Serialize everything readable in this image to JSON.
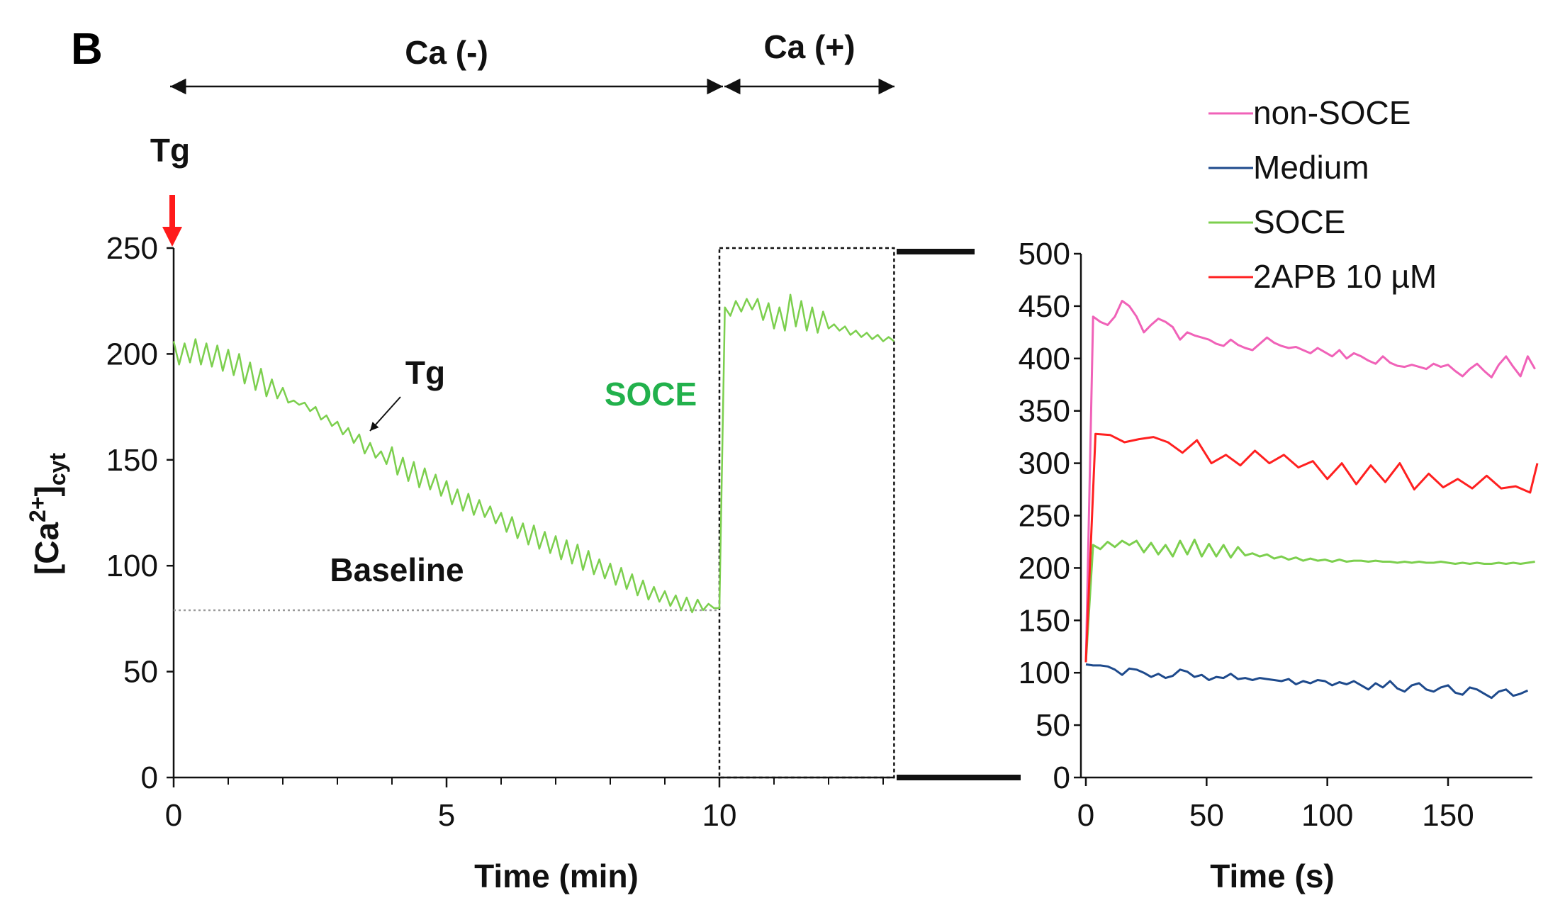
{
  "panel_label": "B",
  "colors": {
    "axis": "#111111",
    "tg_arrow": "#ff1a1a",
    "soce_annotation": "#22b14c",
    "baseline_dotted": "#9a9a9a"
  },
  "annotations": {
    "ca_minus": "Ca (-)",
    "ca_plus": "Ca (+)",
    "tg_top": "Tg",
    "tg_inline": "Tg",
    "soce": "SOCE",
    "baseline": "Baseline"
  },
  "chart_data": [
    {
      "type": "line",
      "xlabel": "Time (min)",
      "ylabel": "[Ca2+]cyt",
      "ylabel_parts": {
        "main": "[Ca",
        "sup": "2+",
        "close": "]",
        "sub": "cyt"
      },
      "xlim": [
        0,
        13.2
      ],
      "ylim": [
        0,
        250
      ],
      "x_ticks": [
        0,
        5,
        10
      ],
      "x_minor_ticks": [
        1,
        2,
        3,
        4,
        6,
        7,
        8,
        9,
        11,
        12,
        13
      ],
      "y_ticks": [
        0,
        50,
        100,
        150,
        200,
        250
      ],
      "baseline_value": 79,
      "inset_box": {
        "x": [
          10,
          13.2
        ],
        "y": [
          0,
          250
        ]
      },
      "series": [
        {
          "color": "#7ccf4e",
          "x": [
            0,
            0.1,
            0.2,
            0.3,
            0.4,
            0.5,
            0.6,
            0.7,
            0.8,
            0.9,
            1.0,
            1.1,
            1.2,
            1.3,
            1.4,
            1.5,
            1.6,
            1.7,
            1.8,
            1.9,
            2.0,
            2.1,
            2.2,
            2.3,
            2.4,
            2.5,
            2.6,
            2.7,
            2.8,
            2.9,
            3.0,
            3.1,
            3.2,
            3.3,
            3.4,
            3.5,
            3.6,
            3.7,
            3.8,
            3.9,
            4.0,
            4.1,
            4.2,
            4.3,
            4.4,
            4.5,
            4.6,
            4.7,
            4.8,
            4.9,
            5.0,
            5.1,
            5.2,
            5.3,
            5.4,
            5.5,
            5.6,
            5.7,
            5.8,
            5.9,
            6.0,
            6.1,
            6.2,
            6.3,
            6.4,
            6.5,
            6.6,
            6.7,
            6.8,
            6.9,
            7.0,
            7.1,
            7.2,
            7.3,
            7.4,
            7.5,
            7.6,
            7.7,
            7.8,
            7.9,
            8.0,
            8.1,
            8.2,
            8.3,
            8.4,
            8.5,
            8.6,
            8.7,
            8.8,
            8.9,
            9.0,
            9.1,
            9.2,
            9.3,
            9.4,
            9.5,
            9.6,
            9.7,
            9.8,
            9.9,
            10.0,
            10.1,
            10.2,
            10.3,
            10.4,
            10.5,
            10.6,
            10.7,
            10.8,
            10.9,
            11.0,
            11.1,
            11.2,
            11.3,
            11.4,
            11.5,
            11.6,
            11.7,
            11.8,
            11.9,
            12.0,
            12.1,
            12.2,
            12.3,
            12.4,
            12.5,
            12.6,
            12.7,
            12.8,
            12.9,
            13.0,
            13.1,
            13.2
          ],
          "y": [
            206,
            195,
            205,
            196,
            207,
            195,
            205,
            194,
            204,
            192,
            202,
            190,
            200,
            186,
            196,
            183,
            193,
            180,
            188,
            179,
            184,
            177,
            178,
            176,
            177,
            173,
            175,
            169,
            171,
            166,
            168,
            162,
            165,
            158,
            162,
            153,
            158,
            151,
            154,
            148,
            156,
            143,
            151,
            140,
            149,
            137,
            146,
            136,
            143,
            133,
            140,
            129,
            136,
            126,
            134,
            124,
            131,
            123,
            128,
            120,
            125,
            116,
            123,
            113,
            120,
            110,
            119,
            108,
            116,
            106,
            114,
            103,
            112,
            101,
            110,
            98,
            107,
            96,
            103,
            94,
            101,
            91,
            99,
            89,
            96,
            86,
            93,
            84,
            90,
            83,
            88,
            81,
            86,
            79,
            85,
            78,
            84,
            79,
            82,
            80,
            80,
            222,
            218,
            225,
            220,
            226,
            221,
            226,
            216,
            224,
            212,
            222,
            211,
            228,
            213,
            225,
            211,
            222,
            210,
            220,
            212,
            214,
            211,
            213,
            209,
            211,
            208,
            210,
            207,
            209,
            206,
            208,
            206
          ]
        }
      ]
    },
    {
      "type": "line",
      "xlabel": "Time (s)",
      "ylabel": "",
      "xlim": [
        0,
        187
      ],
      "ylim": [
        0,
        500
      ],
      "x_ticks": [
        0,
        50,
        100,
        150
      ],
      "y_ticks": [
        0,
        50,
        100,
        150,
        200,
        250,
        300,
        350,
        400,
        450,
        500
      ],
      "legend": {
        "position": "top-right"
      },
      "series": [
        {
          "name": "non-SOCE",
          "color": "#f062b8",
          "x": [
            0,
            3,
            6,
            9,
            12,
            15,
            18,
            21,
            24,
            27,
            30,
            33,
            36,
            39,
            42,
            45,
            48,
            51,
            54,
            57,
            60,
            63,
            66,
            69,
            72,
            75,
            78,
            81,
            84,
            87,
            90,
            93,
            96,
            99,
            102,
            105,
            108,
            111,
            114,
            117,
            120,
            123,
            126,
            129,
            132,
            135,
            138,
            141,
            144,
            147,
            150,
            153,
            156,
            159,
            162,
            165,
            168,
            171,
            174,
            177,
            180,
            183,
            186
          ],
          "y": [
            110,
            440,
            435,
            432,
            440,
            455,
            450,
            440,
            425,
            432,
            438,
            435,
            430,
            418,
            425,
            422,
            420,
            418,
            414,
            412,
            418,
            413,
            410,
            408,
            414,
            420,
            415,
            412,
            410,
            411,
            408,
            405,
            410,
            406,
            402,
            408,
            400,
            405,
            402,
            398,
            395,
            402,
            396,
            393,
            392,
            394,
            392,
            390,
            395,
            392,
            394,
            388,
            383,
            390,
            395,
            388,
            382,
            394,
            402,
            392,
            383,
            402,
            390
          ]
        },
        {
          "name": "Medium",
          "color": "#1e4a8c",
          "x": [
            0,
            3,
            6,
            9,
            12,
            15,
            18,
            21,
            24,
            27,
            30,
            33,
            36,
            39,
            42,
            45,
            48,
            51,
            54,
            57,
            60,
            63,
            66,
            69,
            72,
            75,
            78,
            81,
            84,
            87,
            90,
            93,
            96,
            99,
            102,
            105,
            108,
            111,
            114,
            117,
            120,
            123,
            126,
            129,
            132,
            135,
            138,
            141,
            144,
            147,
            150,
            153,
            156,
            159,
            162,
            165,
            168,
            171,
            174,
            177,
            180,
            183
          ],
          "y": [
            108,
            107,
            107,
            106,
            103,
            98,
            104,
            103,
            100,
            96,
            99,
            95,
            97,
            103,
            101,
            96,
            98,
            93,
            96,
            95,
            99,
            94,
            95,
            93,
            95,
            94,
            93,
            92,
            94,
            89,
            92,
            90,
            93,
            92,
            88,
            91,
            89,
            92,
            88,
            84,
            90,
            86,
            92,
            85,
            82,
            88,
            90,
            84,
            82,
            86,
            88,
            81,
            79,
            86,
            84,
            80,
            76,
            82,
            84,
            78,
            80,
            83
          ]
        },
        {
          "name": "SOCE",
          "color": "#7ccf4e",
          "x": [
            0,
            3,
            6,
            9,
            12,
            15,
            18,
            21,
            24,
            27,
            30,
            33,
            36,
            39,
            42,
            45,
            48,
            51,
            54,
            57,
            60,
            63,
            66,
            69,
            72,
            75,
            78,
            81,
            84,
            87,
            90,
            93,
            96,
            99,
            102,
            105,
            108,
            111,
            114,
            117,
            120,
            123,
            126,
            129,
            132,
            135,
            138,
            141,
            144,
            147,
            150,
            153,
            156,
            159,
            162,
            165,
            168,
            171,
            174,
            177,
            180,
            183,
            186
          ],
          "y": [
            110,
            222,
            218,
            225,
            220,
            226,
            222,
            226,
            215,
            224,
            213,
            222,
            211,
            226,
            213,
            227,
            211,
            223,
            211,
            222,
            210,
            220,
            212,
            214,
            211,
            213,
            209,
            211,
            208,
            210,
            207,
            209,
            207,
            208,
            206,
            208,
            206,
            207,
            207,
            206,
            207,
            206,
            206,
            205,
            206,
            205,
            206,
            205,
            205,
            206,
            205,
            204,
            205,
            204,
            205,
            204,
            204,
            205,
            204,
            205,
            204,
            205,
            206
          ]
        },
        {
          "name": "2APB  10 µM",
          "color": "#ff2020",
          "x": [
            0,
            4,
            10,
            16,
            22,
            28,
            34,
            40,
            46,
            52,
            58,
            64,
            70,
            76,
            82,
            88,
            94,
            100,
            106,
            112,
            118,
            124,
            130,
            136,
            142,
            148,
            154,
            160,
            166,
            172,
            178,
            184,
            187
          ],
          "y": [
            110,
            328,
            327,
            320,
            323,
            325,
            320,
            310,
            322,
            300,
            308,
            298,
            312,
            300,
            308,
            296,
            302,
            285,
            300,
            280,
            298,
            282,
            300,
            275,
            290,
            277,
            285,
            276,
            288,
            276,
            278,
            272,
            300
          ]
        }
      ]
    }
  ]
}
